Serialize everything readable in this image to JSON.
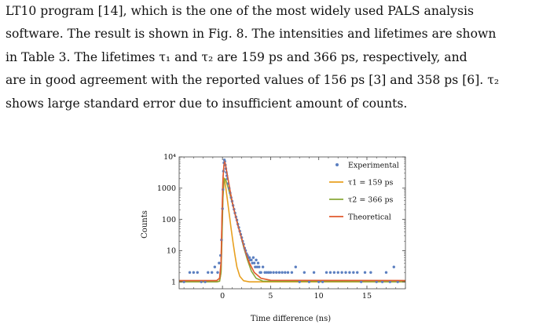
{
  "body_text": {
    "lines": [
      "LT10 program [14], which is the one of the most widely used PALS analysis",
      "software. The result is shown in Fig. 8. The intensities and lifetimes are shown",
      "in Table 3. The lifetimes τ₁ and τ₂ are 159 ps and 366 ps, respectively, and",
      "are in good agreement with the reported values of 156 ps [3] and 358 ps [6]. τ₂",
      "shows large standard error due to insufficient amount of counts."
    ]
  },
  "chart_data": {
    "type": "scatter",
    "xlabel": "Time difference (ns)",
    "ylabel": "Counts",
    "y_scale": "log",
    "xlim": [
      -4.5,
      19
    ],
    "ylim": [
      0.6,
      10000
    ],
    "x_ticks": [
      0,
      5,
      10,
      15
    ],
    "x_tick_labels": [
      "0",
      "5",
      "10",
      "15"
    ],
    "y_ticks": [
      1,
      10,
      100,
      1000,
      10000
    ],
    "y_tick_labels": [
      "1",
      "10",
      "100",
      "1000",
      "10⁴"
    ],
    "legend": {
      "position": "top-right",
      "entries": [
        {
          "label": "Experimental",
          "kind": "marker",
          "color": "#5b7fc0"
        },
        {
          "label": "τ1 = 159 ps",
          "kind": "line",
          "color": "#e8a020"
        },
        {
          "label": "τ2 = 366 ps",
          "kind": "line",
          "color": "#8aa838"
        },
        {
          "label": "Theoretical",
          "kind": "line",
          "color": "#e05a2e"
        }
      ]
    },
    "series": [
      {
        "name": "Experimental",
        "style": "scatter",
        "color": "#5b7fc0",
        "points": [
          [
            -4.0,
            1
          ],
          [
            -3.4,
            2
          ],
          [
            -3.0,
            2
          ],
          [
            -2.6,
            2
          ],
          [
            -2.2,
            1
          ],
          [
            -1.8,
            1
          ],
          [
            -1.5,
            2
          ],
          [
            -1.1,
            2
          ],
          [
            -0.8,
            3
          ],
          [
            -0.5,
            2
          ],
          [
            -0.35,
            4
          ],
          [
            -0.2,
            7
          ],
          [
            -0.1,
            22
          ],
          [
            0.0,
            220
          ],
          [
            0.05,
            900
          ],
          [
            0.1,
            3500
          ],
          [
            0.15,
            6500
          ],
          [
            0.2,
            8000
          ],
          [
            0.25,
            7200
          ],
          [
            0.3,
            5500
          ],
          [
            0.35,
            4200
          ],
          [
            0.4,
            3200
          ],
          [
            0.45,
            2500
          ],
          [
            0.5,
            2000
          ],
          [
            0.6,
            1400
          ],
          [
            0.7,
            1000
          ],
          [
            0.8,
            700
          ],
          [
            0.9,
            500
          ],
          [
            1.0,
            380
          ],
          [
            1.1,
            280
          ],
          [
            1.2,
            210
          ],
          [
            1.3,
            160
          ],
          [
            1.4,
            120
          ],
          [
            1.5,
            95
          ],
          [
            1.6,
            70
          ],
          [
            1.7,
            55
          ],
          [
            1.8,
            42
          ],
          [
            1.9,
            33
          ],
          [
            2.0,
            26
          ],
          [
            2.1,
            20
          ],
          [
            2.2,
            16
          ],
          [
            2.3,
            12
          ],
          [
            2.4,
            10
          ],
          [
            2.5,
            8
          ],
          [
            2.6,
            7
          ],
          [
            2.7,
            6
          ],
          [
            2.8,
            6
          ],
          [
            2.9,
            5
          ],
          [
            3.0,
            5
          ],
          [
            3.1,
            4
          ],
          [
            3.2,
            6
          ],
          [
            3.3,
            4
          ],
          [
            3.4,
            3
          ],
          [
            3.5,
            5
          ],
          [
            3.6,
            3
          ],
          [
            3.7,
            4
          ],
          [
            3.8,
            3
          ],
          [
            3.9,
            2
          ],
          [
            4.0,
            2
          ],
          [
            4.2,
            3
          ],
          [
            4.4,
            2
          ],
          [
            4.6,
            2
          ],
          [
            4.8,
            2
          ],
          [
            5.0,
            2
          ],
          [
            5.3,
            2
          ],
          [
            5.6,
            2
          ],
          [
            5.9,
            2
          ],
          [
            6.2,
            2
          ],
          [
            6.5,
            2
          ],
          [
            6.8,
            2
          ],
          [
            7.2,
            2
          ],
          [
            7.6,
            3
          ],
          [
            8.0,
            1
          ],
          [
            8.5,
            2
          ],
          [
            9.0,
            1
          ],
          [
            9.5,
            2
          ],
          [
            10.0,
            1
          ],
          [
            10.4,
            1
          ],
          [
            10.8,
            2
          ],
          [
            11.2,
            2
          ],
          [
            11.6,
            2
          ],
          [
            12.0,
            2
          ],
          [
            12.4,
            2
          ],
          [
            12.8,
            2
          ],
          [
            13.2,
            2
          ],
          [
            13.6,
            2
          ],
          [
            14.0,
            2
          ],
          [
            14.4,
            1
          ],
          [
            14.8,
            2
          ],
          [
            15.4,
            2
          ],
          [
            16.0,
            1
          ],
          [
            16.6,
            1
          ],
          [
            17.0,
            2
          ],
          [
            17.4,
            1
          ],
          [
            17.8,
            3
          ],
          [
            18.2,
            1
          ]
        ]
      },
      {
        "name": "τ1 = 159 ps",
        "style": "line",
        "color": "#e8a020",
        "points": [
          [
            -4.5,
            1
          ],
          [
            -0.6,
            1
          ],
          [
            -0.3,
            1.05
          ],
          [
            -0.15,
            2
          ],
          [
            -0.05,
            40
          ],
          [
            0.05,
            900
          ],
          [
            0.15,
            2100
          ],
          [
            0.25,
            1600
          ],
          [
            0.35,
            1000
          ],
          [
            0.5,
            450
          ],
          [
            0.7,
            150
          ],
          [
            0.9,
            50
          ],
          [
            1.1,
            18
          ],
          [
            1.3,
            7
          ],
          [
            1.5,
            3
          ],
          [
            1.8,
            1.5
          ],
          [
            2.2,
            1.08
          ],
          [
            2.8,
            1.0
          ],
          [
            19,
            1.0
          ]
        ]
      },
      {
        "name": "τ2 = 366 ps",
        "style": "line",
        "color": "#8aa838",
        "points": [
          [
            -4.5,
            1
          ],
          [
            -0.6,
            1
          ],
          [
            -0.3,
            1.05
          ],
          [
            -0.15,
            2
          ],
          [
            -0.05,
            25
          ],
          [
            0.05,
            500
          ],
          [
            0.15,
            1500
          ],
          [
            0.25,
            2000
          ],
          [
            0.35,
            1800
          ],
          [
            0.5,
            1300
          ],
          [
            0.8,
            600
          ],
          [
            1.1,
            270
          ],
          [
            1.4,
            120
          ],
          [
            1.8,
            40
          ],
          [
            2.2,
            13
          ],
          [
            2.6,
            5
          ],
          [
            3.0,
            2.2
          ],
          [
            3.5,
            1.3
          ],
          [
            4.2,
            1.05
          ],
          [
            19,
            1.0
          ]
        ]
      },
      {
        "name": "Theoretical",
        "style": "line",
        "color": "#e05a2e",
        "points": [
          [
            -4.5,
            1.1
          ],
          [
            -0.6,
            1.1
          ],
          [
            -0.3,
            1.3
          ],
          [
            -0.15,
            4
          ],
          [
            -0.05,
            120
          ],
          [
            0.05,
            2000
          ],
          [
            0.15,
            5500
          ],
          [
            0.22,
            7000
          ],
          [
            0.3,
            6000
          ],
          [
            0.4,
            4000
          ],
          [
            0.6,
            1800
          ],
          [
            0.8,
            800
          ],
          [
            1.0,
            380
          ],
          [
            1.3,
            150
          ],
          [
            1.6,
            65
          ],
          [
            2.0,
            24
          ],
          [
            2.4,
            9
          ],
          [
            2.8,
            4
          ],
          [
            3.3,
            2
          ],
          [
            4.0,
            1.3
          ],
          [
            5.0,
            1.12
          ],
          [
            19,
            1.1
          ]
        ]
      }
    ]
  }
}
